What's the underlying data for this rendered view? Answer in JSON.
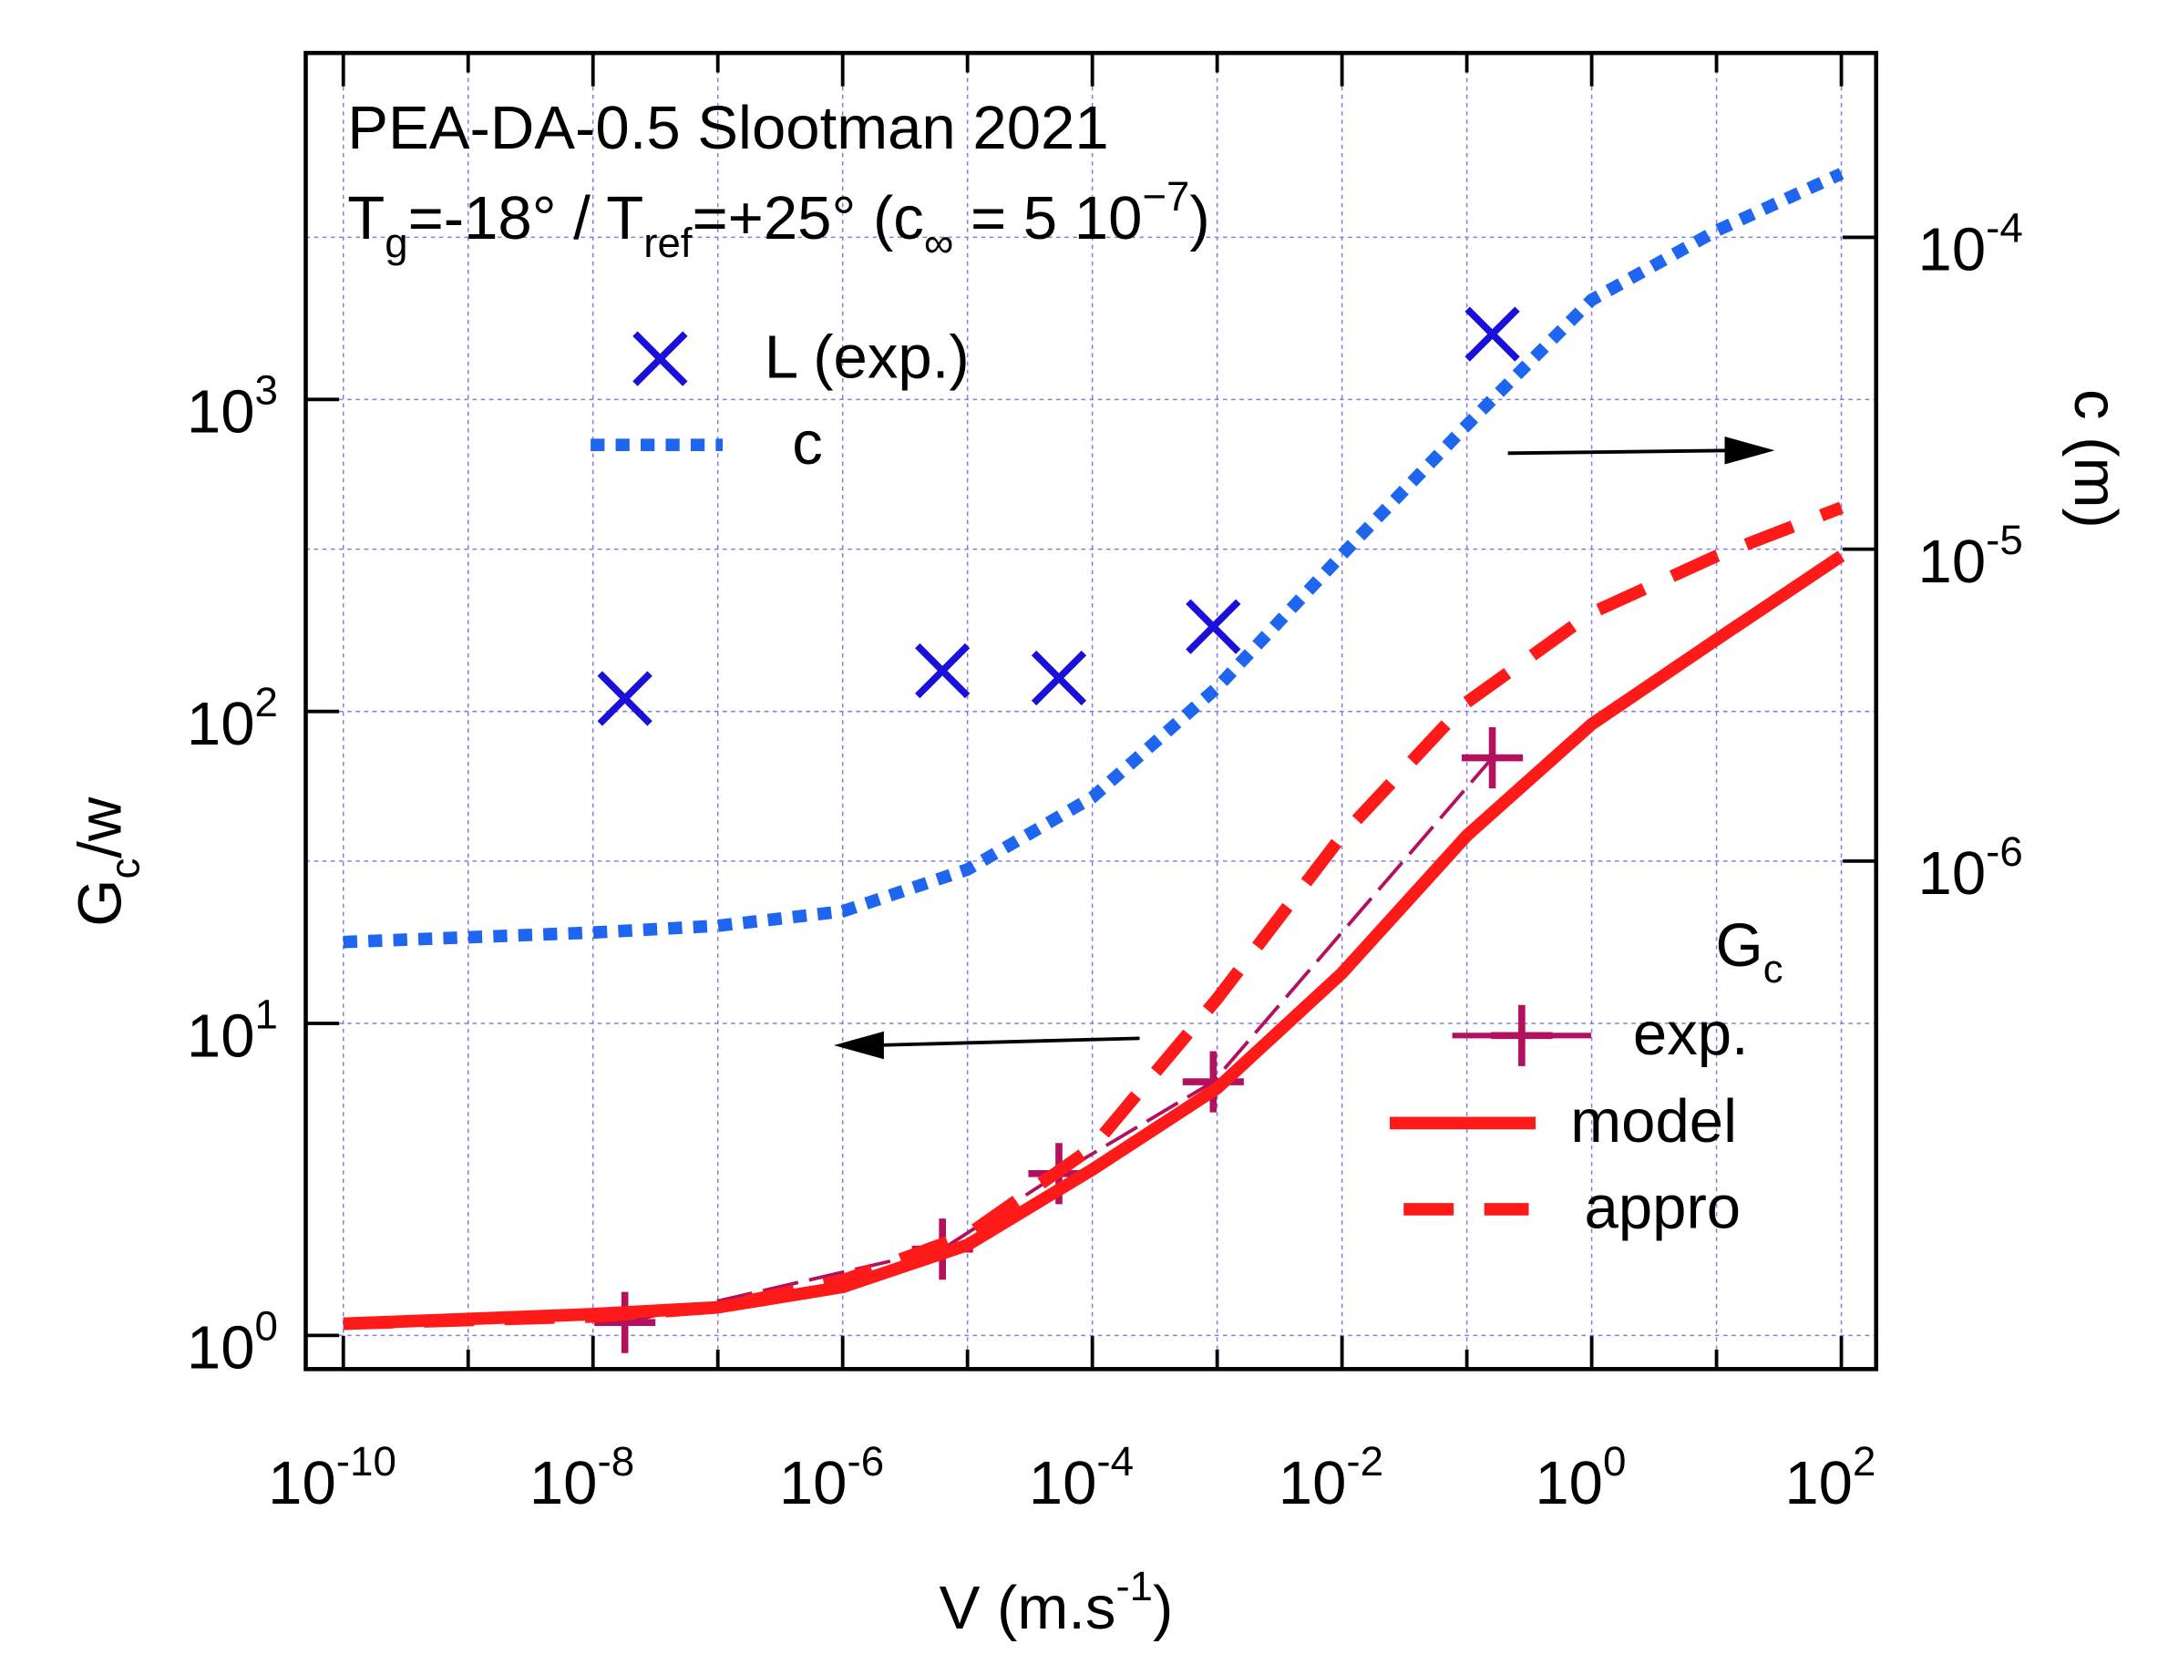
{
  "chart_data": {
    "type": "line",
    "title": "PEA-DA-0.5 Slootman 2021",
    "subtitle": [
      {
        "text": "T"
      },
      {
        "text": "g",
        "sub": true
      },
      {
        "text": "=-18° / T"
      },
      {
        "text": "ref",
        "sub": true
      },
      {
        "text": "=+25° (c"
      },
      {
        "text": "∞",
        "sub": true
      },
      {
        "text": " = 5 10"
      },
      {
        "text": "−7",
        "sup": true
      },
      {
        "text": ")"
      }
    ],
    "x_label": [
      {
        "text": "V (m.s"
      },
      {
        "text": "-1",
        "sup": true
      },
      {
        "text": ")"
      }
    ],
    "y_label": [
      {
        "text": "G"
      },
      {
        "text": "c",
        "sub": true
      },
      {
        "text": "/w"
      }
    ],
    "y2_label": [
      {
        "text": "c (m)"
      }
    ],
    "legend_heading": [
      {
        "text": "G"
      },
      {
        "text": "c",
        "sub": true
      }
    ],
    "log_x": true,
    "log_y": true,
    "log_y2": true,
    "grid": true,
    "xlim": [
      5e-11,
      190
    ],
    "ylim": [
      0.78,
      12900
    ],
    "y2lim": [
      2.35e-08,
      0.00039
    ],
    "xticks": [
      {
        "value": 1e-10,
        "label": "10^-10"
      },
      {
        "value": 1e-09
      },
      {
        "value": 1e-08,
        "label": "10^-8"
      },
      {
        "value": 1e-07
      },
      {
        "value": 1e-06,
        "label": "10^-6"
      },
      {
        "value": 1e-05
      },
      {
        "value": 0.0001,
        "label": "10^-4"
      },
      {
        "value": 0.001
      },
      {
        "value": 0.01,
        "label": "10^-2"
      },
      {
        "value": 0.1
      },
      {
        "value": 1,
        "label": "10^0"
      },
      {
        "value": 10
      },
      {
        "value": 100,
        "label": "10^2"
      }
    ],
    "yticks": [
      {
        "value": 1,
        "label": "10^0"
      },
      {
        "value": 10,
        "label": "10^1"
      },
      {
        "value": 100,
        "label": "10^2"
      },
      {
        "value": 1000,
        "label": "10^3"
      }
    ],
    "y2ticks": [
      {
        "value": 1e-06,
        "label": "10^-6"
      },
      {
        "value": 1e-05,
        "label": "10^-5"
      },
      {
        "value": 0.0001,
        "label": "10^-4"
      }
    ],
    "series": [
      {
        "name": "L (exp.)",
        "color": "#1a10d8",
        "marker": "x",
        "line": "none",
        "x": [
          1.8e-08,
          6.3e-06,
          5.4e-05,
          0.00093,
          0.16
        ],
        "values": [
          110,
          135,
          128,
          187,
          1620
        ]
      },
      {
        "name": "c",
        "color": "#1e66f0",
        "line": "dotted",
        "axis": "y2",
        "x": [
          1e-10,
          1e-08,
          1e-07,
          1e-06,
          1e-05,
          0.0001,
          0.001,
          0.01,
          0.1,
          1,
          10,
          100
        ],
        "values": [
          5.5e-07,
          5.9e-07,
          6.2e-07,
          6.9e-07,
          9.4e-07,
          1.6e-06,
          3.6e-06,
          9.6e-06,
          2.5e-05,
          6.3e-05,
          0.000105,
          0.00016
        ]
      },
      {
        "name": "exp.",
        "color": "#b3105e",
        "marker": "plus",
        "line": "thin-dashed",
        "x": [
          1.8e-08,
          6.3e-06,
          5.4e-05,
          0.00093,
          0.16
        ],
        "values": [
          1.1,
          1.89,
          3.3,
          6.5,
          71
        ]
      },
      {
        "name": "model",
        "color": "#ff1a1a",
        "line": "solid",
        "x": [
          1e-10,
          1e-08,
          1e-07,
          1e-06,
          1e-05,
          0.0001,
          0.001,
          0.01,
          0.1,
          1,
          10,
          100
        ],
        "values": [
          1.09,
          1.17,
          1.23,
          1.43,
          1.95,
          3.4,
          6.2,
          14.5,
          40,
          91,
          170,
          315
        ]
      },
      {
        "name": "appro",
        "color": "#ff1a1a",
        "line": "dashed",
        "x": [
          1e-10,
          1e-08,
          1e-07,
          1e-06,
          1e-05,
          0.0001,
          0.001,
          0.01,
          0.1,
          1,
          10,
          100
        ],
        "values": [
          1.09,
          1.15,
          1.23,
          1.5,
          2.1,
          4.0,
          12,
          40,
          107,
          207,
          315,
          450
        ]
      }
    ]
  }
}
